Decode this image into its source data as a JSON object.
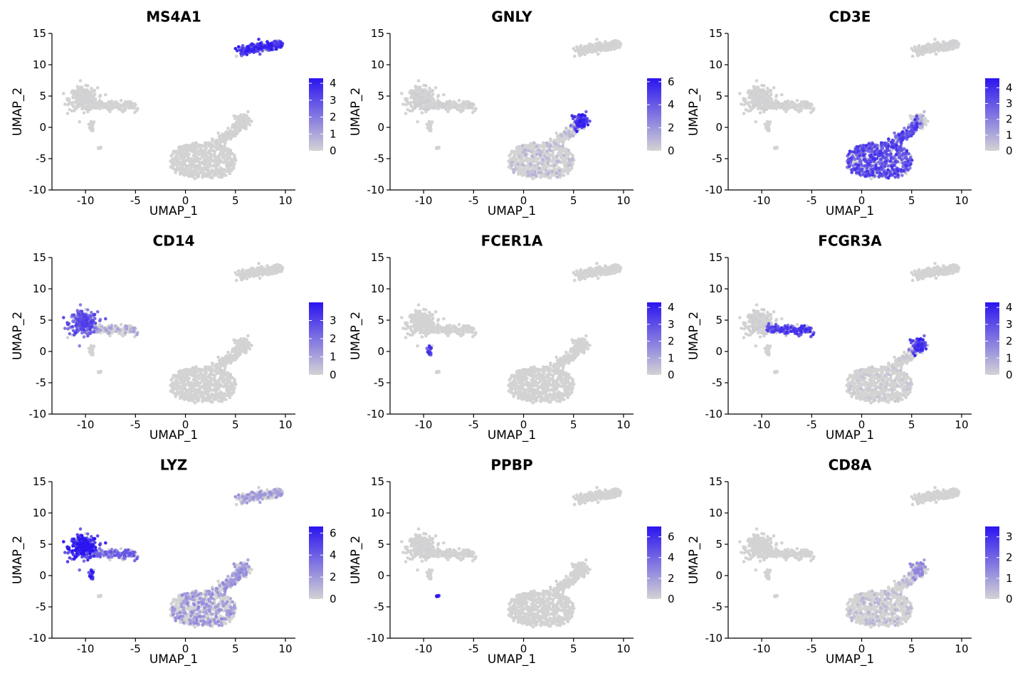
{
  "colors": {
    "low": "#d3d3d3",
    "high": "#2b14f0"
  },
  "chart_data": [
    {
      "type": "scatter",
      "title": "MS4A1",
      "xlabel": "UMAP_1",
      "ylabel": "UMAP_2",
      "xlim": [
        -13,
        11
      ],
      "ylim": [
        -10,
        15
      ],
      "xticks": [
        -10,
        -5,
        0,
        5,
        10
      ],
      "yticks": [
        -10,
        -5,
        0,
        5,
        10,
        15
      ],
      "legend": {
        "position": "right",
        "min": 0,
        "max": 4.3,
        "ticks": [
          0,
          1,
          2,
          3,
          4
        ]
      },
      "expression": {
        "B_cluster": 0.85,
        "Mono_cluster": 0.03,
        "Mono_arm": 0.02,
        "T_cluster": 0.03,
        "NK_tip": 0.02,
        "small_cluster": 0.0
      }
    },
    {
      "type": "scatter",
      "title": "GNLY",
      "xlabel": "UMAP_1",
      "ylabel": "UMAP_2",
      "xlim": [
        -13,
        11
      ],
      "ylim": [
        -10,
        15
      ],
      "xticks": [
        -10,
        -5,
        0,
        5,
        10
      ],
      "yticks": [
        -10,
        -5,
        0,
        5,
        10,
        15
      ],
      "legend": {
        "position": "right",
        "min": 0,
        "max": 6.3,
        "ticks": [
          0,
          2,
          4,
          6
        ]
      },
      "expression": {
        "B_cluster": 0.02,
        "Mono_cluster": 0.05,
        "Mono_arm": 0.05,
        "T_cluster": 0.15,
        "NK_tip": 0.9,
        "small_cluster": 0.0
      }
    },
    {
      "type": "scatter",
      "title": "CD3E",
      "xlabel": "UMAP_1",
      "ylabel": "UMAP_2",
      "xlim": [
        -13,
        11
      ],
      "ylim": [
        -10,
        15
      ],
      "xticks": [
        -10,
        -5,
        0,
        5,
        10
      ],
      "yticks": [
        -10,
        -5,
        0,
        5,
        10,
        15
      ],
      "legend": {
        "position": "right",
        "min": 0,
        "max": 4.6,
        "ticks": [
          0,
          1,
          2,
          3,
          4
        ]
      },
      "expression": {
        "B_cluster": 0.03,
        "Mono_cluster": 0.03,
        "Mono_arm": 0.03,
        "T_cluster": 0.75,
        "NK_tip": 0.2,
        "small_cluster": 0.0
      }
    },
    {
      "type": "scatter",
      "title": "CD14",
      "xlabel": "UMAP_1",
      "ylabel": "UMAP_2",
      "xlim": [
        -13,
        11
      ],
      "ylim": [
        -10,
        15
      ],
      "xticks": [
        -10,
        -5,
        0,
        5,
        10
      ],
      "yticks": [
        -10,
        -5,
        0,
        5,
        10,
        15
      ],
      "legend": {
        "position": "right",
        "min": 0,
        "max": 4.0,
        "ticks": [
          0,
          1,
          2,
          3
        ]
      },
      "expression": {
        "B_cluster": 0.0,
        "Mono_cluster": 0.7,
        "Mono_arm": 0.25,
        "T_cluster": 0.02,
        "NK_tip": 0.0,
        "small_cluster": 0.0
      }
    },
    {
      "type": "scatter",
      "title": "FCER1A",
      "xlabel": "UMAP_1",
      "ylabel": "UMAP_2",
      "xlim": [
        -13,
        11
      ],
      "ylim": [
        -10,
        15
      ],
      "xticks": [
        -10,
        -5,
        0,
        5,
        10
      ],
      "yticks": [
        -10,
        -5,
        0,
        5,
        10,
        15
      ],
      "legend": {
        "position": "right",
        "min": 0,
        "max": 4.3,
        "ticks": [
          0,
          1,
          2,
          3,
          4
        ]
      },
      "expression": {
        "B_cluster": 0.0,
        "Mono_cluster": 0.0,
        "Mono_arm": 0.0,
        "T_cluster": 0.01,
        "NK_tip": 0.0,
        "small_cluster": 0.0,
        "stalk": 0.8
      }
    },
    {
      "type": "scatter",
      "title": "FCGR3A",
      "xlabel": "UMAP_1",
      "ylabel": "UMAP_2",
      "xlim": [
        -13,
        11
      ],
      "ylim": [
        -10,
        15
      ],
      "xticks": [
        -10,
        -5,
        0,
        5,
        10
      ],
      "yticks": [
        -10,
        -5,
        0,
        5,
        10,
        15
      ],
      "legend": {
        "position": "right",
        "min": 0,
        "max": 4.3,
        "ticks": [
          0,
          1,
          2,
          3,
          4
        ]
      },
      "expression": {
        "B_cluster": 0.02,
        "Mono_cluster": 0.05,
        "Mono_arm": 0.8,
        "T_cluster": 0.08,
        "NK_tip": 0.85,
        "small_cluster": 0.0
      }
    },
    {
      "type": "scatter",
      "title": "LYZ",
      "xlabel": "UMAP_1",
      "ylabel": "UMAP_2",
      "xlim": [
        -13,
        11
      ],
      "ylim": [
        -10,
        15
      ],
      "xticks": [
        -10,
        -5,
        0,
        5,
        10
      ],
      "yticks": [
        -10,
        -5,
        0,
        5,
        10,
        15
      ],
      "legend": {
        "position": "right",
        "min": 0,
        "max": 6.6,
        "ticks": [
          0,
          2,
          4,
          6
        ]
      },
      "expression": {
        "B_cluster": 0.3,
        "Mono_cluster": 0.95,
        "Mono_arm": 0.6,
        "T_cluster": 0.35,
        "NK_tip": 0.35,
        "small_cluster": 0.0,
        "stalk": 0.9
      }
    },
    {
      "type": "scatter",
      "title": "PPBP",
      "xlabel": "UMAP_1",
      "ylabel": "UMAP_2",
      "xlim": [
        -13,
        11
      ],
      "ylim": [
        -10,
        15
      ],
      "xticks": [
        -10,
        -5,
        0,
        5,
        10
      ],
      "yticks": [
        -10,
        -5,
        0,
        5,
        10,
        15
      ],
      "legend": {
        "position": "right",
        "min": 0,
        "max": 7.0,
        "ticks": [
          0,
          2,
          4,
          6
        ]
      },
      "expression": {
        "B_cluster": 0.0,
        "Mono_cluster": 0.03,
        "Mono_arm": 0.03,
        "T_cluster": 0.01,
        "NK_tip": 0.0,
        "small_cluster": 1.0
      }
    },
    {
      "type": "scatter",
      "title": "CD8A",
      "xlabel": "UMAP_1",
      "ylabel": "UMAP_2",
      "xlim": [
        -13,
        11
      ],
      "ylim": [
        -10,
        15
      ],
      "xticks": [
        -10,
        -5,
        0,
        5,
        10
      ],
      "yticks": [
        -10,
        -5,
        0,
        5,
        10,
        15
      ],
      "legend": {
        "position": "right",
        "min": 0,
        "max": 3.5,
        "ticks": [
          0,
          1,
          2,
          3
        ]
      },
      "expression": {
        "B_cluster": 0.01,
        "Mono_cluster": 0.01,
        "Mono_arm": 0.01,
        "T_cluster": 0.15,
        "NK_tip": 0.4,
        "small_cluster": 0.0
      }
    }
  ]
}
